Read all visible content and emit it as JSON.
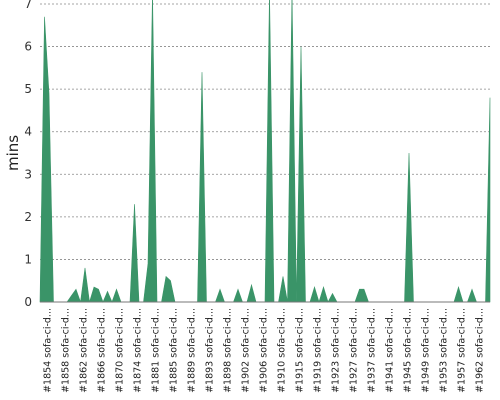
{
  "chart_data": {
    "type": "area",
    "ylabel": "mins",
    "ylim": [
      0,
      7
    ],
    "yticks": [
      0,
      1,
      2,
      3,
      4,
      5,
      6,
      7
    ],
    "grid": true,
    "color": "#3a9468",
    "x_labels": [
      "#1854 sofa-ci-d...",
      "#1858 sofa-ci-d...",
      "#1862 sofa-ci-d...",
      "#1866 sofa-ci-d...",
      "#1870 sofa-ci-d...",
      "#1874 sofa-ci-d...",
      "#1881 sofa-ci-d...",
      "#1885 sofa-ci-d...",
      "#1889 sofa-ci-d...",
      "#1893 sofa-ci-d...",
      "#1898 sofa-ci-d...",
      "#1902 sofa-ci-d...",
      "#1906 sofa-ci-d...",
      "#1910 sofa-ci-d...",
      "#1915 sofa-ci-d...",
      "#1919 sofa-ci-d...",
      "#1923 sofa-ci-d...",
      "#1927 sofa-ci-d...",
      "#1937 sofa-ci-d...",
      "#1941 sofa-ci-d...",
      "#1945 sofa-ci-d...",
      "#1949 sofa-ci-d...",
      "#1953 sofa-ci-d...",
      "#1957 sofa-ci-d...",
      "#1962 sofa-ci-d..."
    ],
    "values": [
      0,
      6.7,
      4.9,
      0,
      0,
      0,
      0,
      0.15,
      0.3,
      0,
      0.8,
      0,
      0.35,
      0.3,
      0,
      0.25,
      0,
      0.3,
      0,
      0,
      0,
      2.3,
      0,
      0,
      0.9,
      7.5,
      0,
      0,
      0.6,
      0.5,
      0,
      0,
      0,
      0,
      0,
      0,
      5.4,
      0,
      0,
      0,
      0.3,
      0,
      0,
      0,
      0.3,
      0,
      0,
      0.4,
      0,
      0,
      0,
      7.5,
      0,
      0,
      0.6,
      0,
      7.5,
      0,
      6.0,
      0,
      0,
      0.35,
      0,
      0.35,
      0,
      0.2,
      0,
      0,
      0,
      0,
      0,
      0.3,
      0.3,
      0,
      0,
      0,
      0,
      0,
      0,
      0,
      0,
      0,
      3.5,
      0,
      0,
      0,
      0,
      0,
      0,
      0,
      0,
      0,
      0,
      0.35,
      0,
      0,
      0.3,
      0,
      0,
      0,
      4.8
    ]
  }
}
